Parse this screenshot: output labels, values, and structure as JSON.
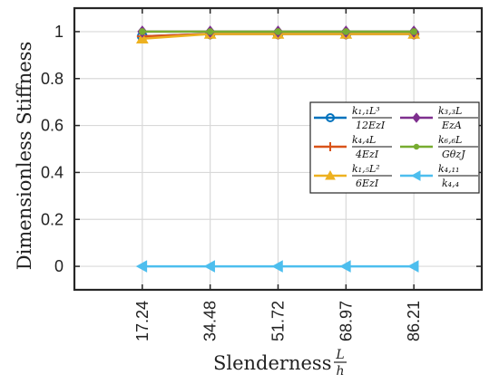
{
  "chart_data": {
    "type": "line",
    "xlabel": "Slenderness",
    "xlabel_fraction": {
      "numerator": "L",
      "denominator": "h"
    },
    "ylabel": "Dimensionless Stiffness",
    "categories": [
      "17.24",
      "34.48",
      "51.72",
      "68.97",
      "86.21"
    ],
    "x": [
      17.24,
      34.48,
      51.72,
      68.97,
      86.21
    ],
    "xlim": [
      0,
      103.45
    ],
    "ylim": [
      -0.1,
      1.1
    ],
    "y_ticks": [
      "0",
      "0.2",
      "0.4",
      "0.6",
      "0.8",
      "1"
    ],
    "y_tick_values": [
      0,
      0.2,
      0.4,
      0.6,
      0.8,
      1
    ],
    "grid": true,
    "legend_position": "center-right",
    "series": [
      {
        "name": "k1,1 L^3 / 12 Ez I",
        "legend_num": "k₁,₁L³",
        "legend_den": "12EzI",
        "marker": "circle",
        "color": "#0072BD",
        "values": [
          0.98,
          0.99,
          0.99,
          0.99,
          0.99
        ]
      },
      {
        "name": "k4,4 L / 4 Ez I",
        "legend_num": "k₄,₄L",
        "legend_den": "4EzI",
        "marker": "plus",
        "color": "#D95319",
        "values": [
          0.98,
          0.99,
          0.99,
          0.99,
          0.99
        ]
      },
      {
        "name": "k1,5 L^2 / 6 Ez I",
        "legend_num": "k₁,₅L²",
        "legend_den": "6EzI",
        "marker": "triangle-up",
        "color": "#EDB120",
        "values": [
          0.97,
          0.99,
          0.99,
          0.99,
          0.99
        ]
      },
      {
        "name": "k3,3 L / Ez A",
        "legend_num": "k₃,₃L",
        "legend_den": "EzA",
        "marker": "diamond",
        "color": "#7E2F8E",
        "values": [
          1.0,
          1.0,
          1.0,
          1.0,
          1.0
        ]
      },
      {
        "name": "k6,6 L / Gθz J",
        "legend_num": "k₆,₆L",
        "legend_den": "GθzJ",
        "marker": "dot",
        "color": "#77AC30",
        "values": [
          1.0,
          1.0,
          1.0,
          1.0,
          1.0
        ]
      },
      {
        "name": "k4,11 / k4,4",
        "legend_num": "k₄,₁₁",
        "legend_den": "k₄,₄",
        "marker": "triangle-left",
        "color": "#4DBEEE",
        "values": [
          0,
          0,
          0,
          0,
          0
        ]
      }
    ]
  }
}
